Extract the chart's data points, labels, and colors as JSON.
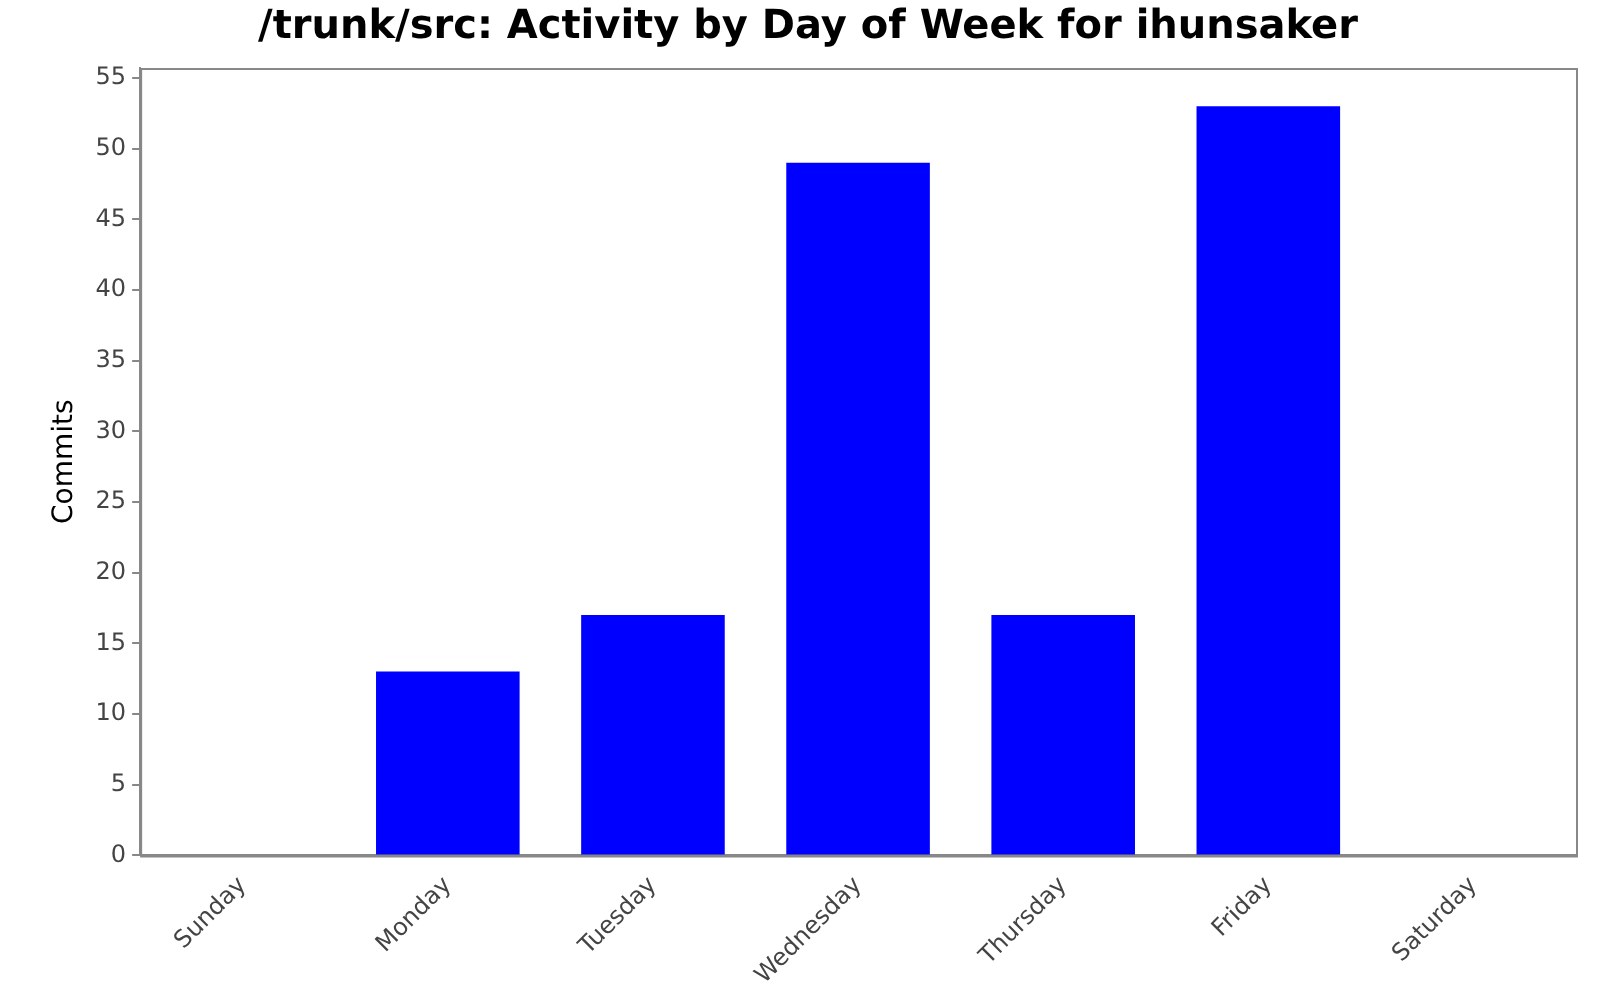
{
  "chart_data": {
    "type": "bar",
    "title": "/trunk/src: Activity by Day of Week for ihunsaker",
    "ylabel": "Commits",
    "categories": [
      "Sunday",
      "Monday",
      "Tuesday",
      "Wednesday",
      "Thursday",
      "Friday",
      "Saturday"
    ],
    "values": [
      0,
      13,
      17,
      49,
      17,
      53,
      0
    ],
    "color": "#0000ff",
    "ylim": [
      0,
      55.7
    ],
    "yticks": [
      0,
      5,
      10,
      15,
      20,
      25,
      30,
      35,
      40,
      45,
      50,
      55
    ],
    "grid": false
  }
}
